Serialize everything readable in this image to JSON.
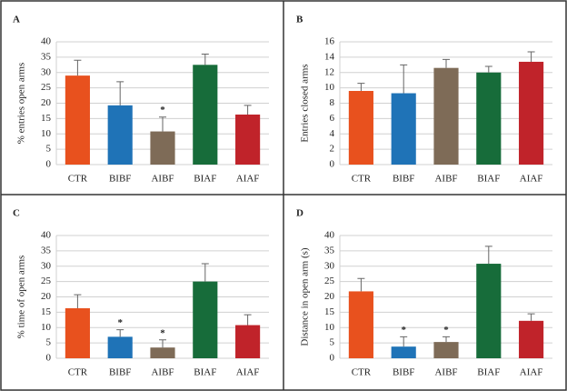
{
  "chart_data": [
    {
      "type": "bar",
      "panel": "A",
      "ylabel": "% entries open arms",
      "categories": [
        "CTR",
        "BIBF",
        "AIBF",
        "BIAF",
        "AIAF"
      ],
      "values": [
        29,
        19.3,
        10.8,
        32.5,
        16.3
      ],
      "errors": [
        5,
        7.7,
        4.7,
        3.5,
        3
      ],
      "significance": [
        null,
        null,
        "*",
        null,
        null
      ],
      "colors": [
        "#e8511e",
        "#1f73b7",
        "#7e6b57",
        "#176c3a",
        "#c0232a"
      ],
      "ylim": [
        0,
        40
      ],
      "yticks": [
        0,
        5,
        10,
        15,
        20,
        25,
        30,
        35,
        40
      ],
      "grid": true
    },
    {
      "type": "bar",
      "panel": "B",
      "ylabel": "Entries closed arms",
      "categories": [
        "CTR",
        "BIBF",
        "AIBF",
        "BIAF",
        "AIAF"
      ],
      "values": [
        9.6,
        9.3,
        12.6,
        12,
        13.4
      ],
      "errors": [
        1,
        3.7,
        1.1,
        0.8,
        1.3
      ],
      "significance": [
        null,
        null,
        null,
        null,
        null
      ],
      "colors": [
        "#e8511e",
        "#1f73b7",
        "#7e6b57",
        "#176c3a",
        "#c0232a"
      ],
      "ylim": [
        0,
        16
      ],
      "yticks": [
        0,
        2,
        4,
        6,
        8,
        10,
        12,
        14,
        16
      ],
      "grid": true
    },
    {
      "type": "bar",
      "panel": "C",
      "ylabel": "% time of open arms",
      "categories": [
        "CTR",
        "BIBF",
        "AIBF",
        "BIAF",
        "AIAF"
      ],
      "values": [
        16.3,
        7,
        3.5,
        25,
        10.8
      ],
      "errors": [
        4.4,
        2.3,
        2.5,
        5.8,
        3.4
      ],
      "significance": [
        null,
        "*",
        "*",
        null,
        null
      ],
      "colors": [
        "#e8511e",
        "#1f73b7",
        "#7e6b57",
        "#176c3a",
        "#c0232a"
      ],
      "ylim": [
        0,
        40
      ],
      "yticks": [
        0,
        5,
        10,
        15,
        20,
        25,
        30,
        35,
        40
      ],
      "grid": true
    },
    {
      "type": "bar",
      "panel": "D",
      "ylabel": "Distance in open arm (s)",
      "categories": [
        "CTR",
        "BIBF",
        "AIBF",
        "BIAF",
        "AIAF"
      ],
      "values": [
        21.8,
        3.8,
        5.3,
        30.8,
        12.2
      ],
      "errors": [
        4.2,
        3.2,
        1.7,
        5.7,
        2.3
      ],
      "significance": [
        null,
        "*",
        "*",
        null,
        null
      ],
      "colors": [
        "#e8511e",
        "#1f73b7",
        "#7e6b57",
        "#176c3a",
        "#c0232a"
      ],
      "ylim": [
        0,
        40
      ],
      "yticks": [
        0,
        5,
        10,
        15,
        20,
        25,
        30,
        35,
        40
      ],
      "grid": true
    }
  ]
}
